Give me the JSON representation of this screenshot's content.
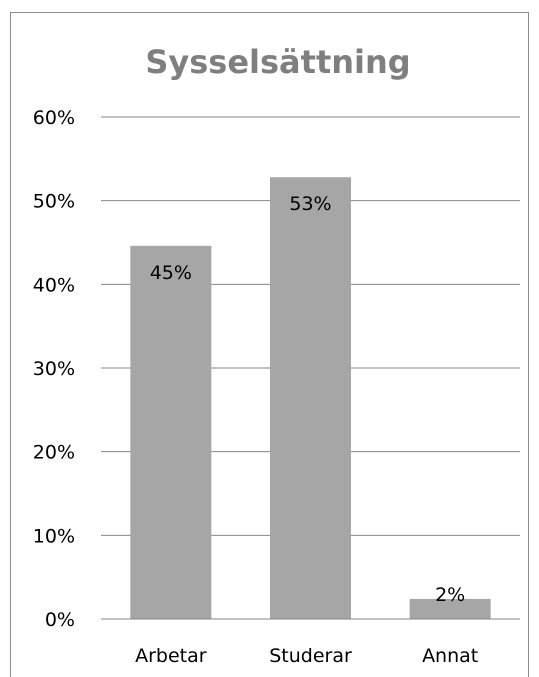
{
  "chart_data": {
    "type": "bar",
    "title": "Sysselsättning",
    "categories": [
      "Arbetar",
      "Studerar",
      "Annat"
    ],
    "values": [
      44.6,
      52.8,
      2.4
    ],
    "data_labels": [
      "45%",
      "53%",
      "2%"
    ],
    "y_tick_labels": [
      "0%",
      "10%",
      "20%",
      "30%",
      "40%",
      "50%",
      "60%"
    ],
    "ylim": [
      0,
      60
    ],
    "y_unit": "%",
    "xlabel": "",
    "ylabel": "",
    "grid": true,
    "legend": "none",
    "colors": {
      "bar": "#a6a6a6",
      "grid": "#868686",
      "title": "#7f7f7f",
      "frame": "#8c8c8c"
    }
  }
}
